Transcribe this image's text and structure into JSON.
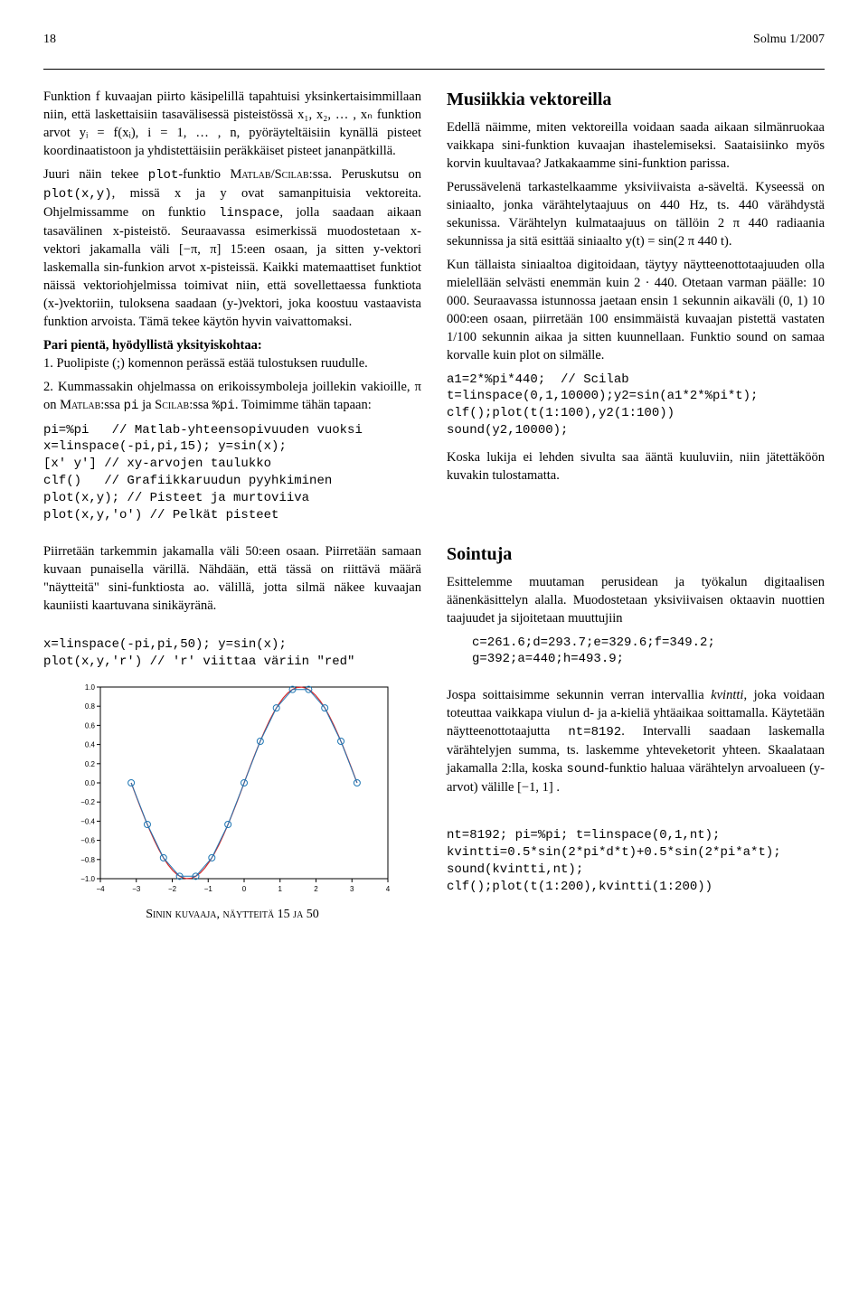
{
  "header": {
    "page_number": "18",
    "journal": "Solmu 1/2007"
  },
  "left": {
    "p1": "Funktion f kuvaajan piirto käsipelillä tapahtuisi yksinkertaisimmillaan niin, että laskettaisiin tasavälisessä pisteistössä x₁, x₂, … , xₙ funktion arvot yᵢ = f(xᵢ), i = 1, … , n, pyöräyteltäisiin kynällä pisteet koordinaatistoon ja yhdistettäisiin peräkkäiset pisteet jananpätkillä.",
    "p2a": "Juuri näin tekee ",
    "p2b": "-funktio ",
    "p2c": ":ssa. Peruskutsu on ",
    "p2d": ", missä x ja y ovat samanpituisia vektoreita. Ohjelmissamme on funktio ",
    "p2e": ", jolla saadaan aikaan tasavälinen x-pisteistö. Seuraavassa esimerkissä muodostetaan x-vektori jakamalla väli [−π, π] 15:een osaan, ja sitten y-vektori laskemalla sin-funkion arvot x-pisteissä. Kaikki matemaattiset funktiot näissä vektoriohjelmissa toimivat niin, että sovellettaessa funktiota (x-)vektoriin, tuloksena saadaan (y-)vektori, joka koostuu vastaavista funktion arvoista. Tämä tekee käytön hyvin vaivattomaksi.",
    "plot_fn": "plot",
    "matlabscilab": "Matlab/Scilab",
    "plotxy": "plot(x,y)",
    "linspace": "linspace",
    "bold1": "Pari pientä, hyödyllistä yksityiskohtaa:",
    "li1": "1. Puolipiste (;) komennon perässä estää tulostuksen ruudulle.",
    "li2a": "2. Kummassakin ohjelmassa on erikoissymboleja joillekin vakioille, π on ",
    "matlab": "Matlab",
    "li2b": ":ssa ",
    "pi": "pi",
    "li2c": " ja ",
    "scilab": "Scilab",
    "li2d": ":ssa ",
    "pctpi": "%pi",
    "li2e": ". Toimimme tähän tapaan:",
    "code1": "pi=%pi   // Matlab-yhteensopivuuden vuoksi\nx=linspace(-pi,pi,15); y=sin(x);\n[x' y'] // xy-arvojen taulukko\nclf()   // Grafiikkaruudun pyyhkiminen\nplot(x,y); // Pisteet ja murtoviiva\nplot(x,y,'o') // Pelkät pisteet",
    "p3": "Piirretään tarkemmin jakamalla väli 50:een osaan. Piirretään samaan kuvaan punaisella värillä. Nähdään, että tässä on riittävä määrä \"näytteitä\" sini-funktiosta ao. välillä, jotta silmä näkee kuvaajan kauniisti kaartuvana sinikäyränä.",
    "code2": "x=linspace(-pi,pi,50); y=sin(x);\nplot(x,y,'r') // 'r' viittaa väriin \"red\"",
    "chart": {
      "type": "line+scatter",
      "xlim": [
        -4,
        4
      ],
      "ylim": [
        -1.0,
        1.0
      ],
      "xtick_step": 1,
      "ytick_step": 0.2,
      "x_ticks": [
        "−4",
        "−3",
        "−2",
        "−1",
        "0",
        "1",
        "2",
        "3",
        "4"
      ],
      "y_ticks": [
        "−1.0",
        "−0.8",
        "−0.6",
        "−0.4",
        "−0.2",
        "0.0",
        "0.2",
        "0.4",
        "0.6",
        "0.8",
        "1.0"
      ],
      "line_color": "#d62728",
      "marker_color": "#1f77b4",
      "marker_fill": "none",
      "marker_style": "circle",
      "marker_size": 3.5,
      "line_width": 1.2,
      "axis_color": "#000000",
      "tick_fontsize": 8,
      "background": "#ffffff",
      "n_markers": 15,
      "n_line": 50,
      "border": true
    },
    "caption": "Sinin kuvaaja, näytteitä 15 ja 50"
  },
  "right": {
    "h1": "Musiikkia vektoreilla",
    "p1": "Edellä näimme, miten vektoreilla voidaan saada aikaan silmänruokaa vaikkapa sini-funktion kuvaajan ihastelemiseksi. Saataisiinko myös korvin kuultavaa? Jatkakaamme sini-funktion parissa.",
    "p2": "Perussävelenä tarkastelkaamme yksiviivaista a-säveltä. Kyseessä on siniaalto, jonka värähtelytaajuus on 440 Hz, ts. 440 värähdystä sekunissa. Värähtelyn kulmataajuus on tällöin 2 π 440 radiaania sekunnissa ja sitä esittää siniaalto y(t) = sin(2 π 440 t).",
    "p3": "Kun tällaista siniaaltoa digitoidaan, täytyy näytteenottotaajuuden olla mielellään selvästi enemmän kuin 2 · 440. Otetaan varman päälle: 10 000. Seuraavassa istunnossa jaetaan ensin 1 sekunnin aikaväli (0, 1) 10 000:een osaan, piirretään 100 ensimmäistä kuvaajan pistettä vastaten 1/100 sekunnin aikaa ja sitten kuunnellaan. Funktio sound on samaa korvalle kuin plot on silmälle.",
    "code1": "a1=2*%pi*440;  // Scilab\nt=linspace(0,1,10000);y2=sin(a1*2*%pi*t);\nclf();plot(t(1:100),y2(1:100))\nsound(y2,10000);",
    "p4": "Koska lukija ei lehden sivulta saa ääntä kuuluviin, niin jätettäköön kuvakin tulostamatta.",
    "h2": "Sointuja",
    "p5": "Esittelemme muutaman perusidean ja työkalun digitaalisen äänenkäsittelyn alalla. Muodostetaan yksiviivaisen oktaavin nuottien taajuudet ja sijoitetaan muuttujiin",
    "code2": "c=261.6;d=293.7;e=329.6;f=349.2;\ng=392;a=440;h=493.9;",
    "p6a": "Jospa soittaisimme sekunnin verran intervallia ",
    "kvintti": "kvintti",
    "p6b": ", joka voidaan toteuttaa vaikkapa viulun d- ja a-kieliä yhtäaikaa soittamalla. Käytetään näytteenottotaajutta ",
    "nt": "nt=8192",
    "p6c": ". Intervalli saadaan laskemalla värähtelyjen summa, ts. laskemme yhteveketorit yhteen. Skaalataan jakamalla 2:lla, koska ",
    "sound": "sound",
    "p6d": "-funktio haluaa värähtelyn arvoalueen (y-arvot) välille [−1, 1] .",
    "code3": "nt=8192; pi=%pi; t=linspace(0,1,nt);\nkvintti=0.5*sin(2*pi*d*t)+0.5*sin(2*pi*a*t);\nsound(kvintti,nt);\nclf();plot(t(1:200),kvintti(1:200))"
  }
}
